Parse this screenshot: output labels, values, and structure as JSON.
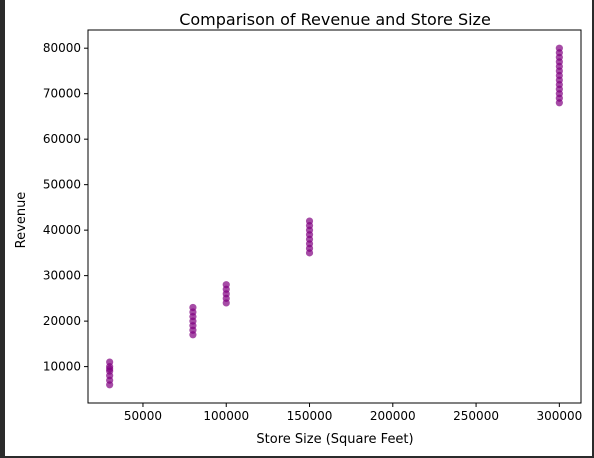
{
  "chart_data": {
    "type": "scatter",
    "title": "Comparison of Revenue and Store Size",
    "xlabel": "Store Size (Square Feet)",
    "ylabel": "Revenue",
    "xlim": [
      17000,
      313000
    ],
    "ylim": [
      2000,
      84000
    ],
    "xticks": [
      50000,
      100000,
      150000,
      200000,
      250000,
      300000
    ],
    "xtick_labels": [
      "50000",
      "100000",
      "150000",
      "200000",
      "250000",
      "300000"
    ],
    "yticks": [
      10000,
      20000,
      30000,
      40000,
      50000,
      60000,
      70000,
      80000
    ],
    "ytick_labels": [
      "10000",
      "20000",
      "30000",
      "40000",
      "50000",
      "60000",
      "70000",
      "80000"
    ],
    "grid": false,
    "marker_color": "#800080",
    "series": [
      {
        "x": [
          30000,
          30000,
          30000,
          30000,
          30000,
          30000,
          30000,
          80000,
          80000,
          80000,
          80000,
          80000,
          80000,
          80000,
          100000,
          100000,
          100000,
          100000,
          100000,
          150000,
          150000,
          150000,
          150000,
          150000,
          150000,
          150000,
          150000,
          300000,
          300000,
          300000,
          300000,
          300000,
          300000,
          300000,
          300000,
          300000,
          300000,
          300000,
          300000,
          300000
        ],
        "y": [
          6000,
          7000,
          8000,
          9000,
          9500,
          10000,
          11000,
          17000,
          18000,
          19000,
          20000,
          21000,
          22000,
          23000,
          24000,
          25000,
          26000,
          27000,
          28000,
          35000,
          36000,
          37000,
          38000,
          39000,
          40000,
          41000,
          42000,
          68000,
          69000,
          70000,
          71000,
          72000,
          73000,
          74000,
          75000,
          76000,
          77000,
          78000,
          79000,
          80000
        ]
      }
    ]
  }
}
